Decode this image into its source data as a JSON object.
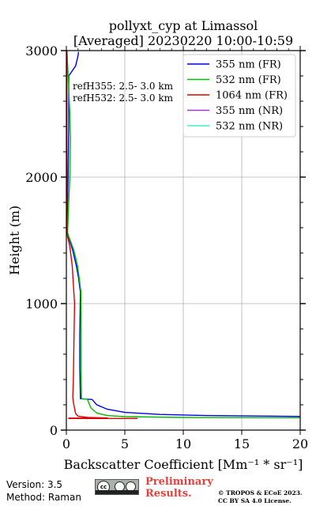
{
  "chart_data": {
    "type": "line",
    "title": "pollyxt_cyp at Limassol",
    "subtitle": "[Averaged] 20230220 10:00-10:59",
    "xlabel": "Backscatter Coefficient [Mm⁻¹ * sr⁻¹]",
    "ylabel": "Height (m)",
    "xlim": [
      0,
      20
    ],
    "ylim": [
      0,
      3000
    ],
    "xticks": [
      0,
      5,
      10,
      15,
      20
    ],
    "yticks": [
      0,
      1000,
      2000,
      3000
    ],
    "grid": true,
    "legend_position": "top-right",
    "annotations": [
      "refH355:  2.5- 3.0 km",
      "refH532:  2.5- 3.0 km"
    ],
    "series": [
      {
        "name": "355 nm (FR)",
        "color": "#0000ee",
        "points": [
          [
            20,
            108
          ],
          [
            12,
            115
          ],
          [
            8,
            124
          ],
          [
            5,
            140
          ],
          [
            3.5,
            165
          ],
          [
            2.6,
            200
          ],
          [
            2.2,
            242
          ],
          [
            1.2,
            248
          ],
          [
            1.15,
            500
          ],
          [
            1.15,
            750
          ],
          [
            1.2,
            1090
          ],
          [
            1.05,
            1200
          ],
          [
            0.85,
            1300
          ],
          [
            0.55,
            1420
          ],
          [
            0.2,
            1520
          ],
          [
            0.05,
            1560
          ],
          [
            0.15,
            2000
          ],
          [
            0.2,
            2400
          ],
          [
            0.2,
            2800
          ],
          [
            0.5,
            2840
          ],
          [
            0.8,
            2880
          ],
          [
            0.9,
            2920
          ],
          [
            1.0,
            2960
          ],
          [
            1.05,
            2990
          ]
        ]
      },
      {
        "name": "532 nm (FR)",
        "color": "#00bb00",
        "points": [
          [
            20,
            98
          ],
          [
            10,
            100
          ],
          [
            5,
            106
          ],
          [
            3.5,
            115
          ],
          [
            2.6,
            135
          ],
          [
            2.1,
            175
          ],
          [
            1.9,
            220
          ],
          [
            1.8,
            245
          ],
          [
            1.3,
            248
          ],
          [
            1.25,
            500
          ],
          [
            1.25,
            750
          ],
          [
            1.25,
            1090
          ],
          [
            1.1,
            1200
          ],
          [
            0.95,
            1300
          ],
          [
            0.65,
            1420
          ],
          [
            0.25,
            1520
          ],
          [
            0.1,
            1560
          ],
          [
            0.2,
            1800
          ],
          [
            0.3,
            2000
          ],
          [
            0.35,
            2300
          ],
          [
            0.3,
            2500
          ],
          [
            0.2,
            2700
          ],
          [
            0.1,
            2900
          ],
          [
            0.05,
            3000
          ]
        ]
      },
      {
        "name": "1064 nm (FR)",
        "color": "#dd0000",
        "points": [
          [
            6.1,
            92
          ],
          [
            0.2,
            92
          ],
          [
            0.2,
            95
          ],
          [
            3.5,
            96
          ],
          [
            1.8,
            100
          ],
          [
            1.0,
            110
          ],
          [
            0.8,
            130
          ],
          [
            0.7,
            170
          ],
          [
            0.6,
            220
          ],
          [
            0.55,
            260
          ],
          [
            0.6,
            400
          ],
          [
            0.65,
            700
          ],
          [
            0.7,
            1000
          ],
          [
            0.6,
            1150
          ],
          [
            0.5,
            1300
          ],
          [
            0.3,
            1450
          ],
          [
            0.1,
            1530
          ],
          [
            0.05,
            1600
          ],
          [
            0.05,
            2000
          ],
          [
            0.05,
            2500
          ],
          [
            0.05,
            3000
          ]
        ]
      },
      {
        "name": "355 nm (NR)",
        "color": "#9b3bd6",
        "points": []
      },
      {
        "name": "532 nm (NR)",
        "color": "#40f0c8",
        "points": []
      }
    ]
  },
  "footer": {
    "version": "Version: 3.5",
    "method": "Method: Raman",
    "preliminary_line1": "Preliminary",
    "preliminary_line2": "Results.",
    "copyright_line1": "© TROPOS & ECoE 2023.",
    "copyright_line2": "CC BY SA 4.0 License."
  }
}
